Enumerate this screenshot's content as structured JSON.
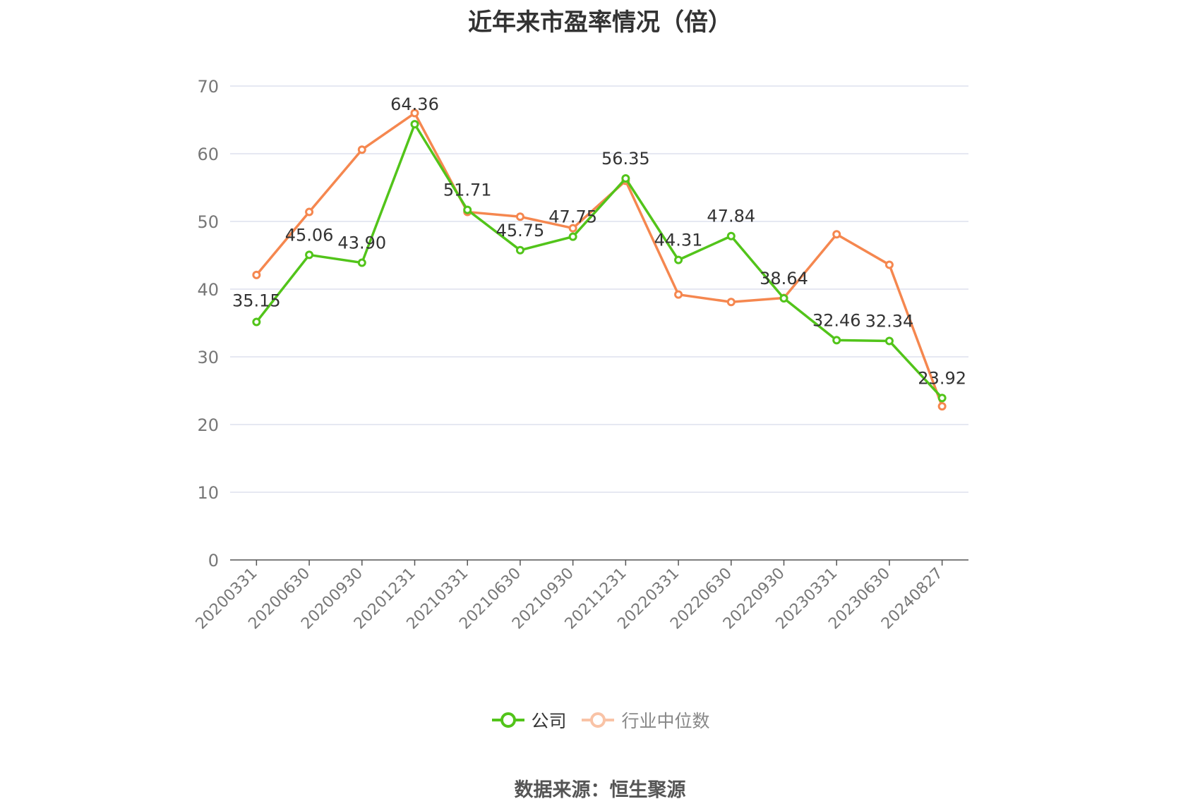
{
  "title": "近年来市盈率情况（倍）",
  "source": "数据来源：恒生聚源",
  "chart_data": {
    "type": "line",
    "title": "近年来市盈率情况（倍）",
    "categories": [
      "20200331",
      "20200630",
      "20200930",
      "20201231",
      "20210331",
      "20210630",
      "20210930",
      "20211231",
      "20220331",
      "20220630",
      "20220930",
      "20230331",
      "20230630",
      "20240827"
    ],
    "ylim": [
      0,
      70
    ],
    "yticks": [
      0,
      10,
      20,
      30,
      40,
      50,
      60,
      70
    ],
    "grid": true,
    "legend_position": "bottom",
    "series": [
      {
        "name": "公司",
        "color": "#52c41a",
        "values": [
          35.15,
          45.06,
          43.9,
          64.36,
          51.71,
          45.75,
          47.75,
          56.35,
          44.31,
          47.84,
          38.64,
          32.46,
          32.34,
          23.92
        ],
        "labels": [
          "35.15",
          "45.06",
          "43.90",
          "64.36",
          "51.71",
          "45.75",
          "47.75",
          "56.35",
          "44.31",
          "47.84",
          "38.64",
          "32.46",
          "32.34",
          "23.92"
        ]
      },
      {
        "name": "行业中位数",
        "color": "#f5874f",
        "values": [
          42.1,
          51.4,
          60.6,
          66.0,
          51.4,
          50.7,
          49.0,
          56.0,
          39.2,
          38.1,
          38.7,
          48.1,
          43.6,
          22.7
        ]
      }
    ]
  },
  "colors": {
    "axis_text": "#777777",
    "grid": "#dde0ee",
    "axis_line": "#555555",
    "label_text": "#333333",
    "legend_company_text": "#333333",
    "legend_industry_text": "#888888",
    "legend_industry_symbol": "#f9c3a6"
  }
}
